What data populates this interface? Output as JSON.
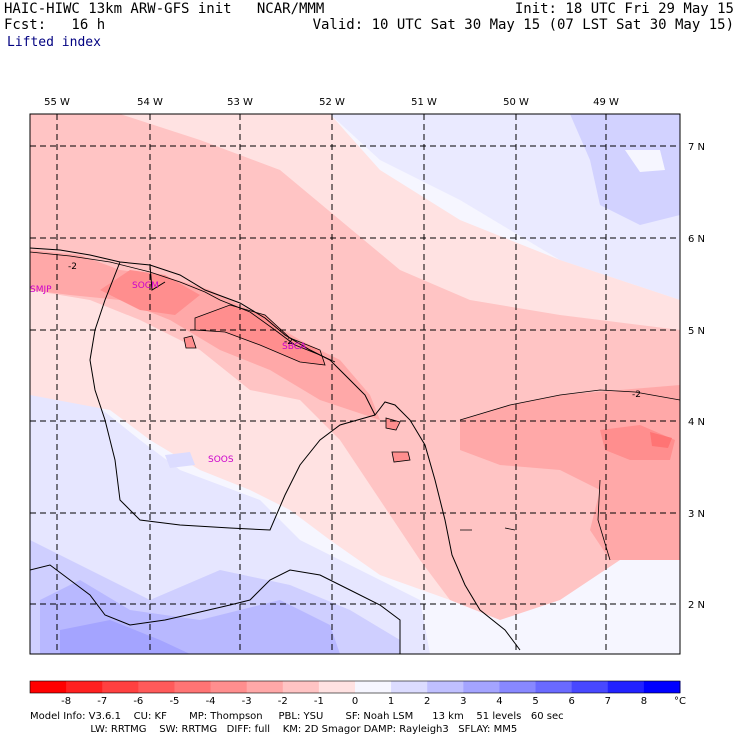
{
  "header": {
    "title": "HAIC-HIWC 13km ARW-GFS init   NCAR/MMM",
    "init": "Init: 18 UTC Fri 29 May 15",
    "fcst": "Fcst:   16 h",
    "valid": "Valid: 10 UTC Sat 30 May 15 (07 LST Sat 30 May 15)",
    "field": "Lifted index"
  },
  "map": {
    "lon_labels": [
      "55 W",
      "54 W",
      "53 W",
      "52 W",
      "51 W",
      "50 W",
      "49 W"
    ],
    "lat_labels": [
      "7 N",
      "6 N",
      "5 N",
      "4 N",
      "3 N",
      "2 N"
    ],
    "stations": [
      "SMJP",
      "SOCM",
      "SBCA",
      "SOOS"
    ],
    "contour_labels": [
      "-2",
      "-2",
      "-2"
    ]
  },
  "colorbar": {
    "ticks": [
      "-8",
      "-7",
      "-6",
      "-5",
      "-4",
      "-3",
      "-2",
      "-1",
      "0",
      "1",
      "2",
      "3",
      "4",
      "5",
      "6",
      "7",
      "8"
    ],
    "unit": "°C",
    "colors": [
      "#ff0000",
      "#ff2020",
      "#ff4040",
      "#ff5a5a",
      "#ff7474",
      "#ff8e8e",
      "#ffa8a8",
      "#ffc4c4",
      "#ffe2e2",
      "#f6f6ff",
      "#dcdcff",
      "#c0c0ff",
      "#a4a4ff",
      "#8888ff",
      "#6a6aff",
      "#4848ff",
      "#2222ff",
      "#0000ff"
    ]
  },
  "footer": {
    "line1": "Model Info: V3.6.1    CU: KF       MP: Thompson     PBL: YSU       SF: Noah LSM      13 km    51 levels   60 sec",
    "line2": "                   LW: RRTMG    SW: RRTMG   DIFF: full    KM: 2D Smagor DAMP: Rayleigh3   SFLAY: MM5"
  }
}
